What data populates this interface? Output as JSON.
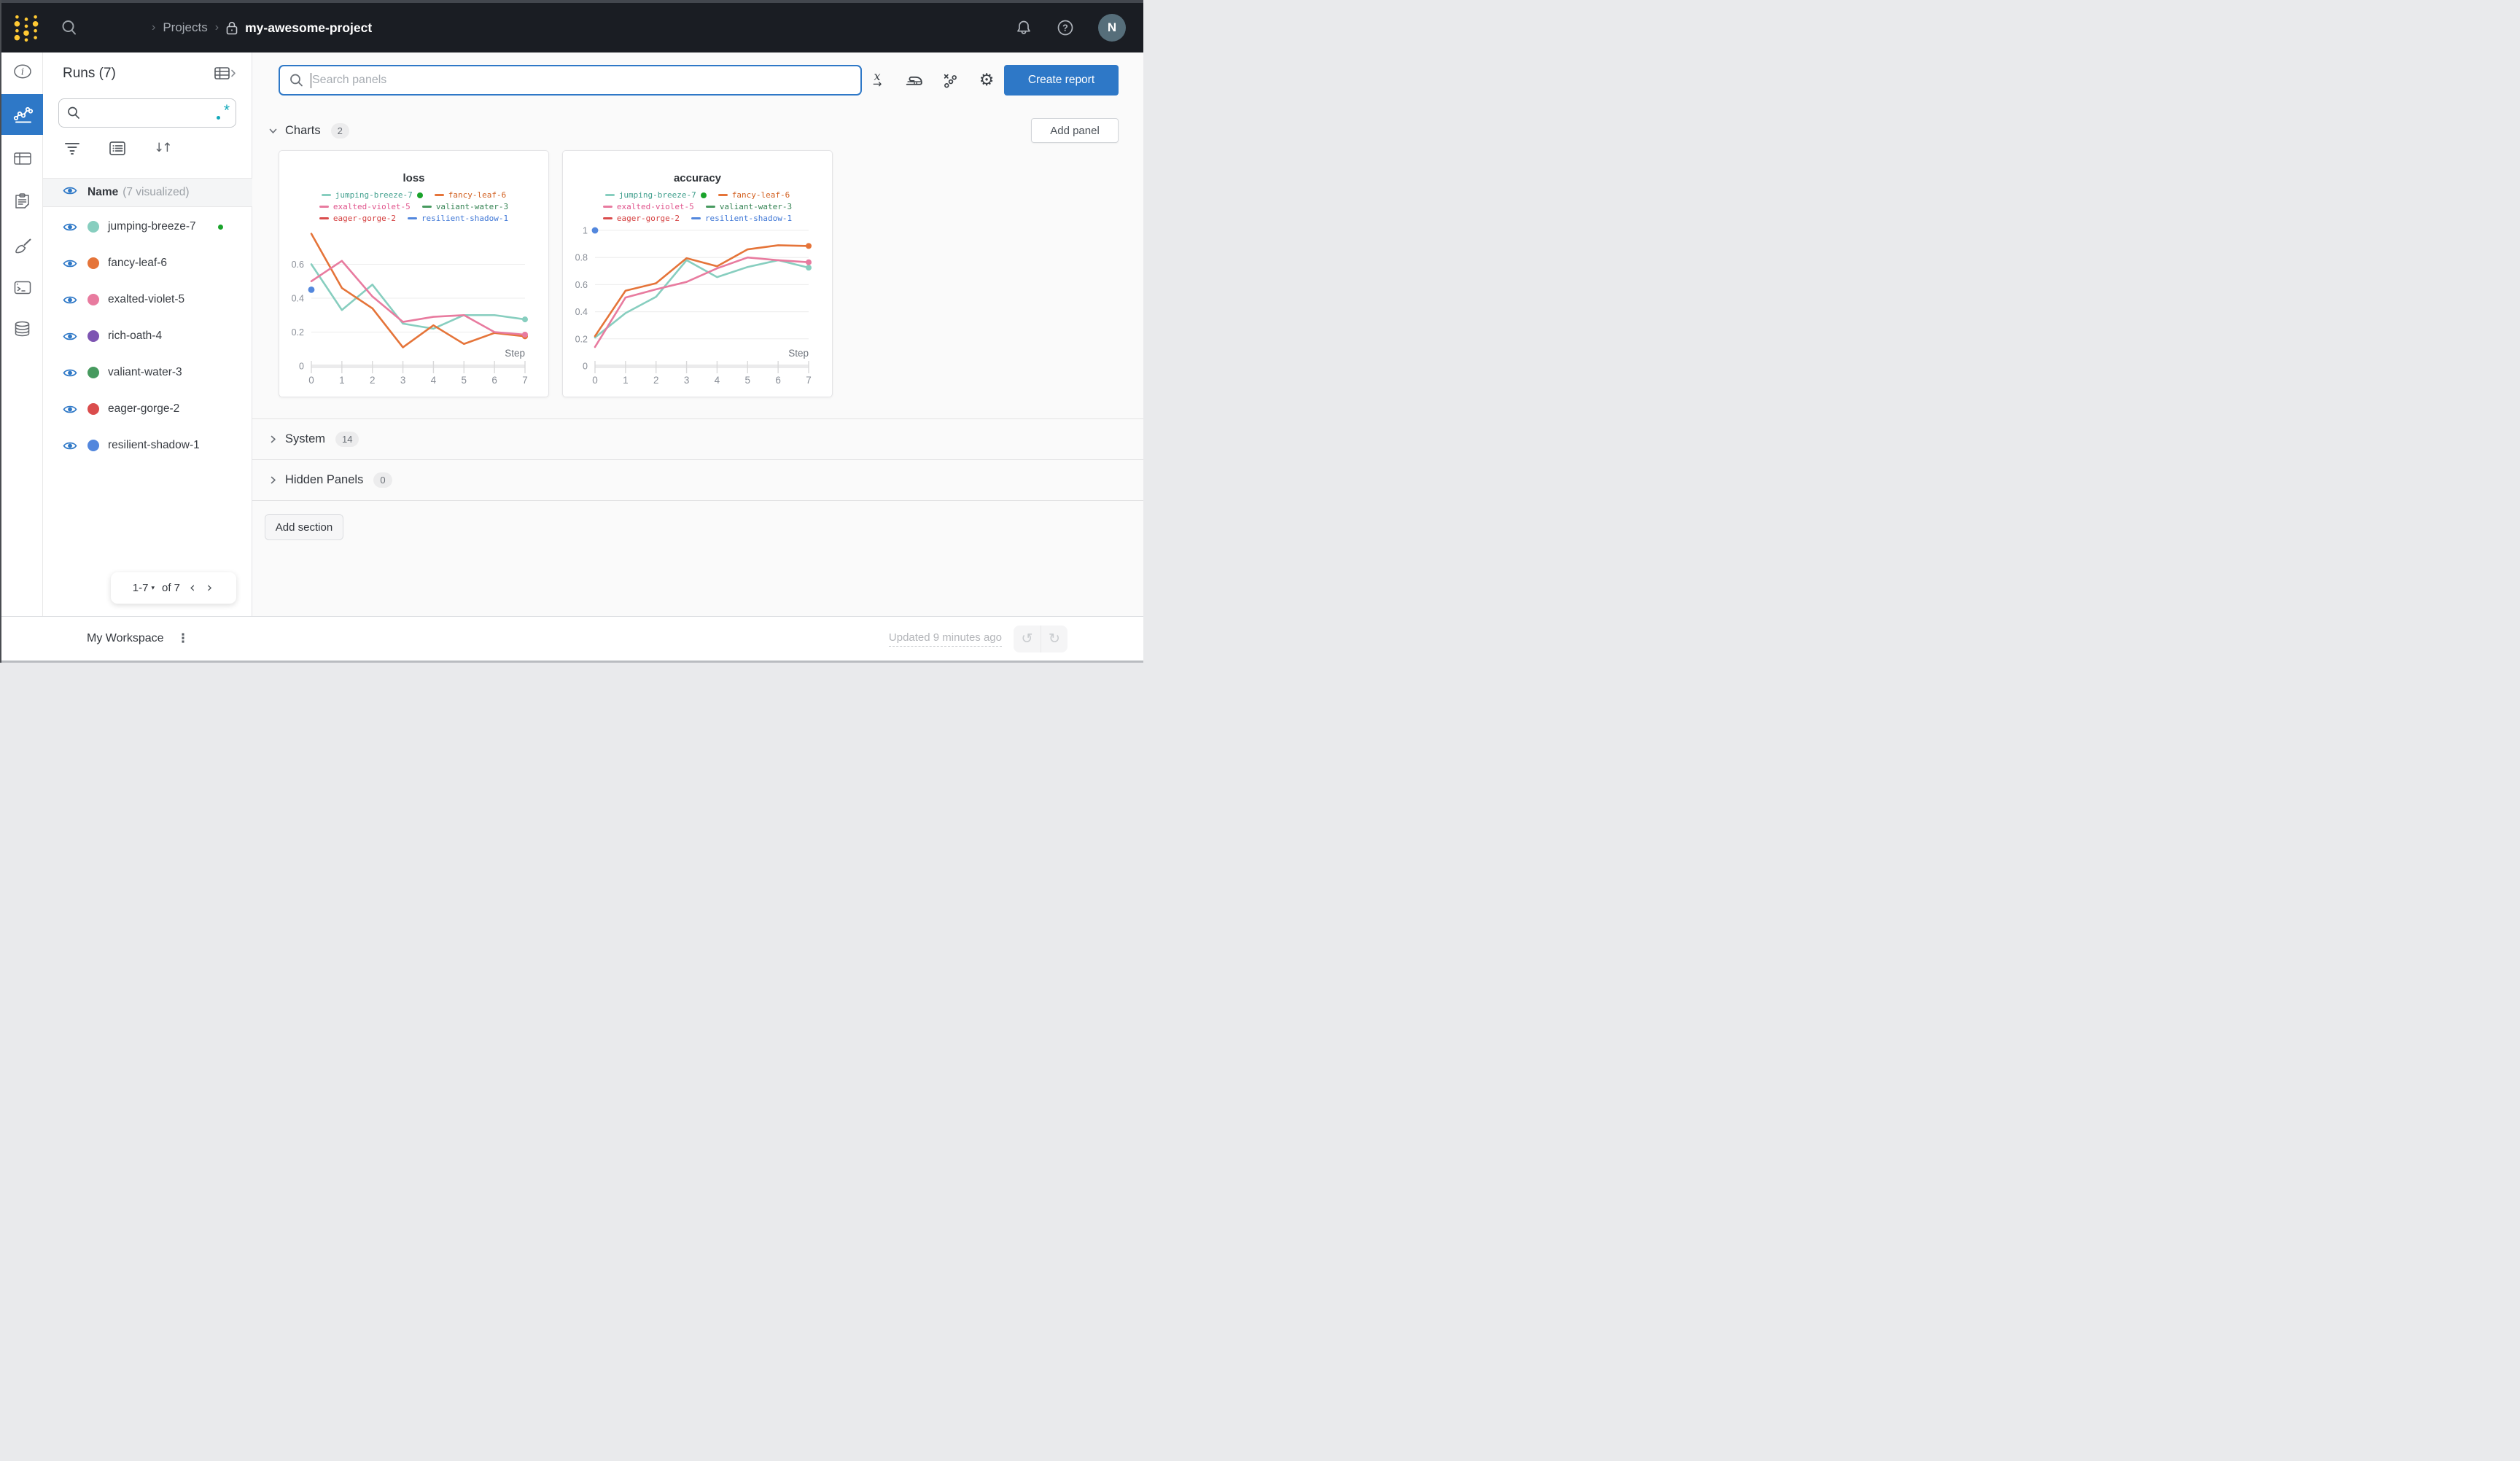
{
  "accent": "#2e78c7",
  "status_green": "#1aa32b",
  "navbar": {
    "breadcrumb": {
      "sep1": "›",
      "projects": "Projects",
      "sep2": "›",
      "project": "my-awesome-project"
    },
    "avatar": "N"
  },
  "sidebar": {
    "title": "Runs (7)",
    "regex_star": "*",
    "header_name": "Name",
    "header_visualized": "(7 visualized)",
    "runs": [
      {
        "name": "jumping-breeze-7",
        "color": "#87CEBF",
        "running": true
      },
      {
        "name": "fancy-leaf-6",
        "color": "#E57439",
        "running": false
      },
      {
        "name": "exalted-violet-5",
        "color": "#E87B9F",
        "running": false
      },
      {
        "name": "rich-oath-4",
        "color": "#7D54B2",
        "running": false
      },
      {
        "name": "valiant-water-3",
        "color": "#479A5F",
        "running": false
      },
      {
        "name": "eager-gorge-2",
        "color": "#DA4C4C",
        "running": false
      },
      {
        "name": "resilient-shadow-1",
        "color": "#5387DD",
        "running": false
      }
    ],
    "pagination": {
      "range": "1-7",
      "caret": "▾",
      "of": "of 7",
      "prev": "‹",
      "next": "›"
    }
  },
  "toolbar": {
    "search_placeholder": "Search panels",
    "create_report": "Create report"
  },
  "sections": {
    "charts_label": "Charts",
    "charts_count": "2",
    "add_panel": "Add panel",
    "system_label": "System",
    "system_count": "14",
    "hidden_label": "Hidden Panels",
    "hidden_count": "0",
    "add_section": "Add section"
  },
  "footer": {
    "workspace": "My Workspace",
    "kebab": "⋮",
    "updated": "Updated 9 minutes ago",
    "undo": "↺",
    "redo": "↻"
  },
  "chart_data": [
    {
      "type": "line",
      "title": "loss",
      "xlabel": "Step",
      "x": [
        0,
        1,
        2,
        3,
        4,
        5,
        6,
        7
      ],
      "xticks": [
        0,
        1,
        2,
        3,
        4,
        5,
        6,
        7
      ],
      "yticks": [
        0,
        0.2,
        0.4,
        0.6
      ],
      "ylim": [
        0,
        0.8
      ],
      "grid": true,
      "legend_position": "top",
      "series": [
        {
          "name": "jumping-breeze-7",
          "color": "#87CEBF",
          "values": [
            0.6,
            0.33,
            0.48,
            0.25,
            0.22,
            0.3,
            0.3,
            0.275
          ],
          "end_dot": true
        },
        {
          "name": "fancy-leaf-6",
          "color": "#E57439",
          "values": [
            0.78,
            0.46,
            0.34,
            0.11,
            0.24,
            0.13,
            0.195,
            0.175
          ],
          "end_dot": true
        },
        {
          "name": "exalted-violet-5",
          "color": "#E87B9F",
          "values": [
            0.5,
            0.62,
            0.41,
            0.26,
            0.29,
            0.3,
            0.2,
            0.185
          ],
          "end_dot": true
        },
        {
          "name": "resilient-shadow-1",
          "color": "#5387DD",
          "values": [
            0.45
          ],
          "point_only": true
        }
      ],
      "legend_rows": [
        [
          {
            "label": "jumping-breeze-7",
            "color": "#87CEBF",
            "text": "#42a08e",
            "status_dot": true
          },
          {
            "label": "fancy-leaf-6",
            "color": "#E57439",
            "text": "#d25f1f"
          }
        ],
        [
          {
            "label": "exalted-violet-5",
            "color": "#E87B9F",
            "text": "#e0548c"
          },
          {
            "label": "valiant-water-3",
            "color": "#479A5F",
            "text": "#348353"
          }
        ],
        [
          {
            "label": "eager-gorge-2",
            "color": "#DA4C4C",
            "text": "#d43f3f"
          },
          {
            "label": "resilient-shadow-1",
            "color": "#5387DD",
            "text": "#3f77d6"
          }
        ]
      ]
    },
    {
      "type": "line",
      "title": "accuracy",
      "xlabel": "Step",
      "x": [
        0,
        1,
        2,
        3,
        4,
        5,
        6,
        7
      ],
      "xticks": [
        0,
        1,
        2,
        3,
        4,
        5,
        6,
        7
      ],
      "yticks": [
        0,
        0.2,
        0.4,
        0.6,
        0.8,
        1
      ],
      "ylim": [
        0,
        1
      ],
      "grid": true,
      "legend_position": "top",
      "series": [
        {
          "name": "jumping-breeze-7",
          "color": "#87CEBF",
          "values": [
            0.21,
            0.39,
            0.51,
            0.78,
            0.655,
            0.73,
            0.78,
            0.725
          ],
          "end_dot": true
        },
        {
          "name": "fancy-leaf-6",
          "color": "#E57439",
          "values": [
            0.22,
            0.555,
            0.61,
            0.795,
            0.735,
            0.86,
            0.89,
            0.885
          ],
          "end_dot": true
        },
        {
          "name": "exalted-violet-5",
          "color": "#E87B9F",
          "values": [
            0.14,
            0.505,
            0.565,
            0.62,
            0.72,
            0.8,
            0.78,
            0.765
          ],
          "end_dot": true
        },
        {
          "name": "resilient-shadow-1",
          "color": "#5387DD",
          "values": [
            1.0
          ],
          "point_only": true
        }
      ],
      "legend_rows": [
        [
          {
            "label": "jumping-breeze-7",
            "color": "#87CEBF",
            "text": "#42a08e",
            "status_dot": true
          },
          {
            "label": "fancy-leaf-6",
            "color": "#E57439",
            "text": "#d25f1f"
          }
        ],
        [
          {
            "label": "exalted-violet-5",
            "color": "#E87B9F",
            "text": "#e0548c"
          },
          {
            "label": "valiant-water-3",
            "color": "#479A5F",
            "text": "#348353"
          }
        ],
        [
          {
            "label": "eager-gorge-2",
            "color": "#DA4C4C",
            "text": "#d43f3f"
          },
          {
            "label": "resilient-shadow-1",
            "color": "#5387DD",
            "text": "#3f77d6"
          }
        ]
      ]
    }
  ]
}
